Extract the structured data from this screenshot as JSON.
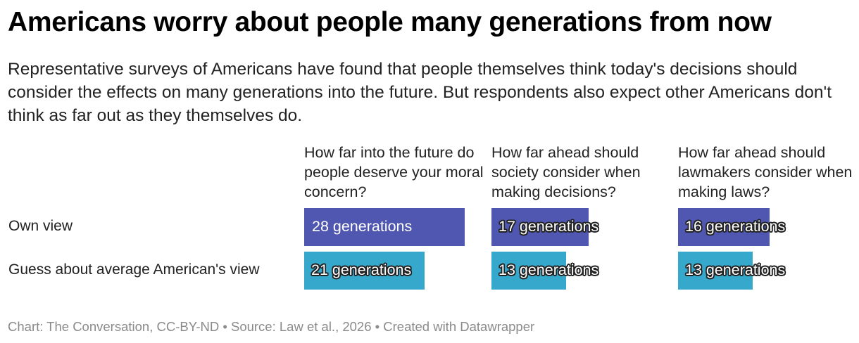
{
  "title": "Americans worry about people many generations from now",
  "subtitle": "Representative surveys of Americans have found that people themselves think today's decisions should consider the effects on many generations into the future. But respondents also expect other Americans don't think as far out as they themselves do.",
  "footer": "Chart: The Conversation, CC-BY-ND • Source: Law et al., 2026 • Created with Datawrapper",
  "colors": {
    "own_view": "#4f57b0",
    "guess_view": "#35a8cc"
  },
  "chart_data": {
    "type": "bar",
    "orientation": "horizontal",
    "panels": [
      {
        "question": "How far into the future do people deserve your moral concern?",
        "values": [
          28,
          21
        ]
      },
      {
        "question": "How far ahead should society consider when making decisions?",
        "values": [
          17,
          13
        ]
      },
      {
        "question": "How far ahead should lawmakers consider when making laws?",
        "values": [
          16,
          13
        ]
      }
    ],
    "rows": [
      "Own view",
      "Guess about average American's view"
    ],
    "unit": "generations",
    "value_labels": [
      [
        "28 generations",
        "21 generations"
      ],
      [
        "17 generations",
        "13 generations"
      ],
      [
        "16 generations",
        "13 generations"
      ]
    ],
    "xlim": [
      0,
      28
    ]
  }
}
